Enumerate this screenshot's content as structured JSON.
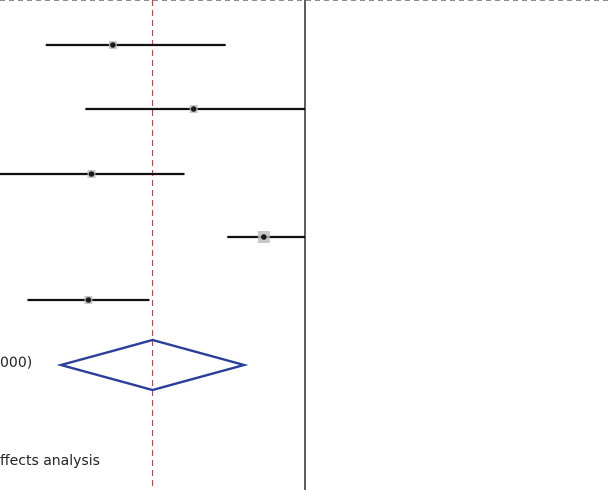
{
  "colors": {
    "ci_line": "#111111",
    "study_box": "#bdbdbd",
    "point": "#1a1a1a",
    "diamond": "#2a3e9a",
    "overall_line": "#d04040",
    "null_line": "#1a1a1a",
    "border": "#8c8c8c"
  },
  "chart_data": {
    "type": "forest",
    "studies": [
      {
        "estimate": 0.74,
        "lower": 0.3,
        "upper": 1.48
      },
      {
        "estimate": 1.27,
        "lower": 0.56,
        "upper": 2.0
      },
      {
        "estimate": 0.6,
        "lower": 0.0,
        "upper": 1.21
      },
      {
        "estimate": 1.73,
        "lower": 1.49,
        "upper": 2.0
      },
      {
        "estimate": 0.58,
        "lower": 0.18,
        "upper": 0.98
      }
    ],
    "pooled": {
      "estimate": 1.0,
      "lower": 0.4,
      "upper": 1.6
    },
    "overall_line_value": 1.0,
    "null_line_value": 2.0,
    "x_visible_range": [
      0.0,
      4.0
    ],
    "labels": {
      "overall_fragment": "000)",
      "note_fragment": "ffects analysis"
    }
  }
}
